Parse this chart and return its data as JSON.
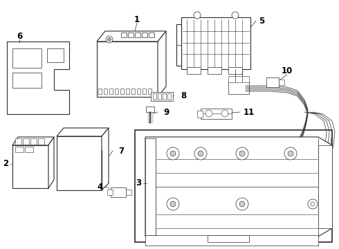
{
  "bg_color": "#ffffff",
  "line_color": "#2a2a2a",
  "label_color": "#000000",
  "label_fontsize": 8.5,
  "fig_width": 4.9,
  "fig_height": 3.6,
  "dpi": 100
}
